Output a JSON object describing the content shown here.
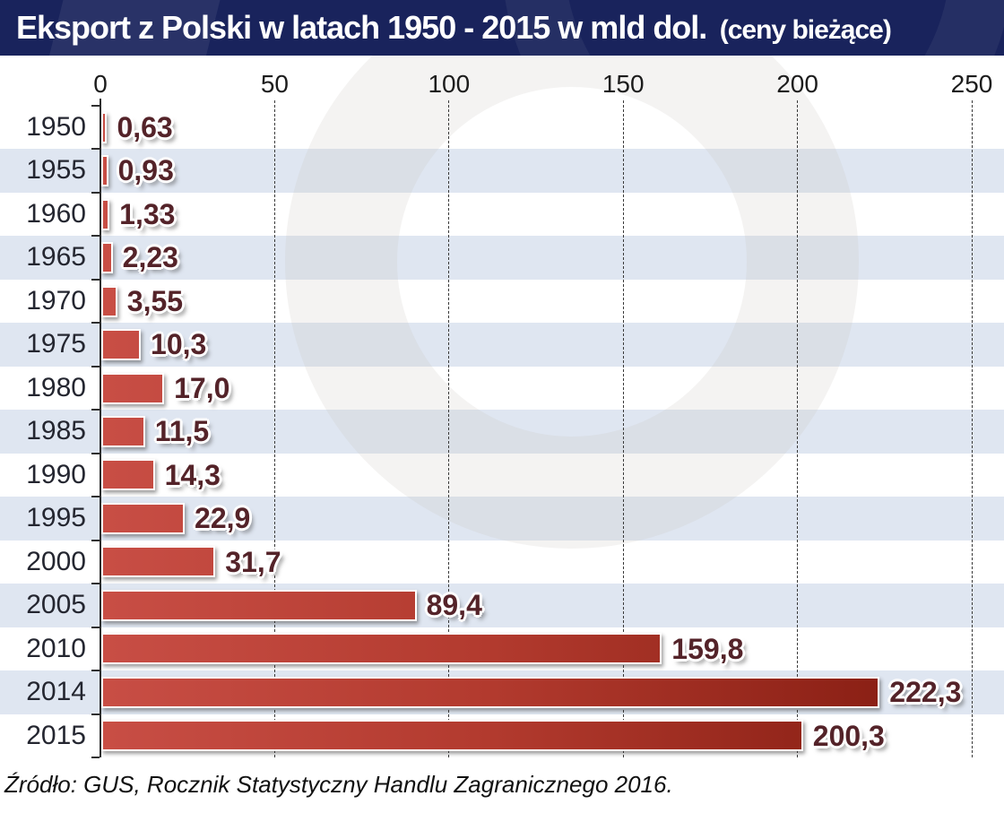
{
  "header": {
    "title": "Eksport z Polski w latach 1950 - 2015 w mld dol.",
    "subtitle": "(ceny bieżące)"
  },
  "axis": {
    "tick_labels": [
      "0",
      "50",
      "100",
      "150",
      "200",
      "250"
    ]
  },
  "chart_data": {
    "type": "bar",
    "orientation": "horizontal",
    "title": "Eksport z Polski w latach 1950 - 2015 w mld dol. (ceny bieżące)",
    "categories": [
      "1950",
      "1955",
      "1960",
      "1965",
      "1970",
      "1975",
      "1980",
      "1985",
      "1990",
      "1995",
      "2000",
      "2005",
      "2010",
      "2014",
      "2015"
    ],
    "values": [
      0.63,
      0.93,
      1.33,
      2.23,
      3.55,
      10.3,
      17.0,
      11.5,
      14.3,
      22.9,
      31.7,
      89.4,
      159.8,
      222.3,
      200.3
    ],
    "value_labels": [
      "0,63",
      "0,93",
      "1,33",
      "2,23",
      "3,55",
      "10,3",
      "17,0",
      "11,5",
      "14,3",
      "22,9",
      "31,7",
      "89,4",
      "159,8",
      "222,3",
      "200,3"
    ],
    "unit": "mld dol. (ceny bieżące)",
    "xlim": [
      0,
      250
    ],
    "x_ticks": [
      0,
      50,
      100,
      150,
      200,
      250
    ],
    "grid": "vertical-dashed",
    "legend": "none",
    "zebra_striped_rows": true,
    "source": "GUS, Rocznik Statystyczny Handlu Zagranicznego 2016"
  },
  "footer": {
    "source": "Źródło: GUS, Rocznik Statystyczny Handlu Zagranicznego 2016."
  },
  "colors": {
    "header_bg": "#19235c",
    "title_text": "#ffffff",
    "stripe": "#dfe6f1",
    "bar_gradient_start": "#c84e45",
    "bar_gradient_mid": "#b23a2e",
    "bar_gradient_end": "#8b2015",
    "value_text": "#542329",
    "year_text": "#242630",
    "axis_line": "#2e2e2e",
    "gridline": "#3a3a3a",
    "source_text": "#111111"
  }
}
